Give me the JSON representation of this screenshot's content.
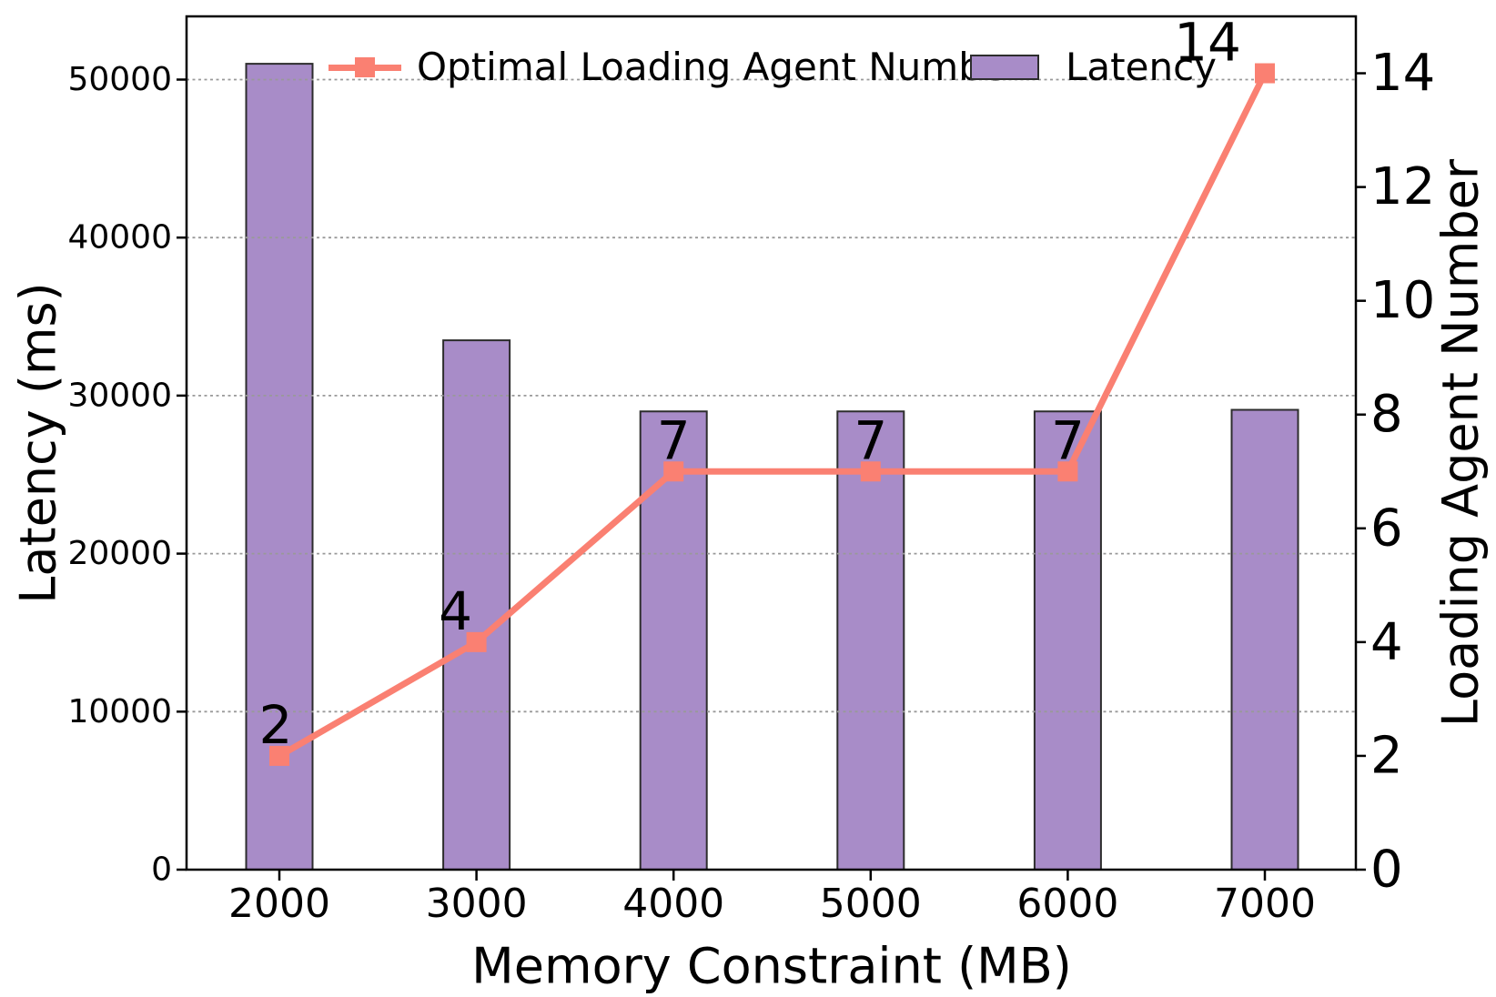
{
  "chart_data": {
    "type": "combo",
    "categories": [
      "2000",
      "3000",
      "4000",
      "5000",
      "6000",
      "7000"
    ],
    "x_axis": {
      "label": "Memory Constraint (MB)",
      "tick_labels": [
        "2000",
        "3000",
        "4000",
        "5000",
        "6000",
        "7000"
      ]
    },
    "y_axis_left": {
      "label": "Latency (ms)",
      "ticks": [
        0,
        10000,
        20000,
        30000,
        40000,
        50000
      ],
      "tick_labels": [
        "0",
        "10000",
        "20000",
        "30000",
        "40000",
        "50000"
      ],
      "range": [
        0,
        54000
      ],
      "grid": true
    },
    "y_axis_right": {
      "label": "Loading Agent Number",
      "ticks": [
        0,
        2,
        4,
        6,
        8,
        10,
        12,
        14
      ],
      "tick_labels": [
        "0",
        "2",
        "4",
        "6",
        "8",
        "10",
        "12",
        "14"
      ],
      "range": [
        0,
        15
      ]
    },
    "series": [
      {
        "name": "Latency",
        "type": "bar",
        "axis": "left",
        "color": "#a88cc8",
        "edge_color": "#2d2d2d",
        "values": [
          51000,
          33500,
          29000,
          29000,
          29000,
          29100
        ]
      },
      {
        "name": "Optimal Loading Agent Number",
        "type": "line",
        "axis": "right",
        "color": "#fa8072",
        "marker": "square",
        "values": [
          2,
          4,
          7,
          7,
          7,
          14
        ],
        "data_labels": [
          "2",
          "4",
          "7",
          "7",
          "7",
          "14"
        ]
      }
    ],
    "legend": {
      "position": "top",
      "entries": [
        "Optimal Loading Agent Number",
        "Latency"
      ]
    },
    "grid_color": "#999999",
    "background": "#ffffff"
  }
}
